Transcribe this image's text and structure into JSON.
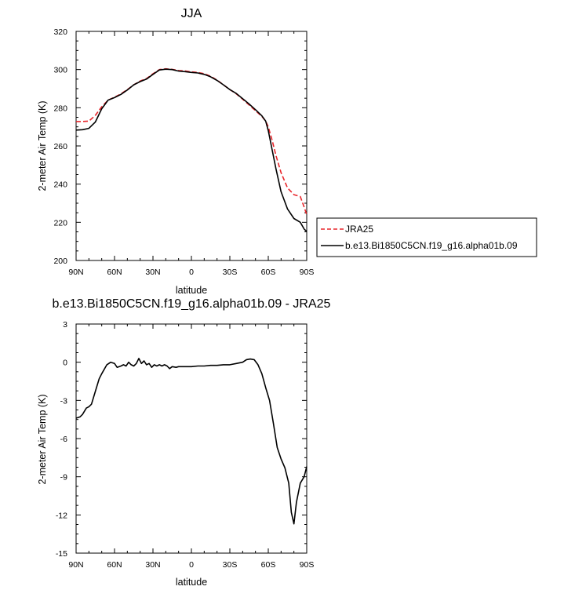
{
  "chart_data": [
    {
      "type": "line",
      "title": "JJA",
      "xlabel": "latitude",
      "ylabel": "2-meter Air Temp (K)",
      "xlim": [
        90,
        -90
      ],
      "ylim": [
        200,
        320
      ],
      "x_tick_labels": [
        "90N",
        "60N",
        "30N",
        "0",
        "30S",
        "60S",
        "90S"
      ],
      "y_tick_labels": [
        "200",
        "220",
        "240",
        "260",
        "280",
        "300",
        "320"
      ],
      "legend": {
        "placement": "right",
        "entries": [
          "JRA25",
          "b.e13.Bi1850C5CN.f19_g16.alpha01b.09"
        ]
      },
      "series": [
        {
          "name": "JRA25",
          "color": "#e8262b",
          "dash": "dashed",
          "points": [
            [
              90,
              272.8
            ],
            [
              85,
              272.8
            ],
            [
              80,
              273
            ],
            [
              75,
              276
            ],
            [
              70,
              280.5
            ],
            [
              65,
              284
            ],
            [
              60,
              285.5
            ],
            [
              55,
              287.3
            ],
            [
              50,
              289.5
            ],
            [
              45,
              292
            ],
            [
              40,
              294
            ],
            [
              35,
              295.3
            ],
            [
              30,
              297.8
            ],
            [
              25,
              300
            ],
            [
              20,
              300.4
            ],
            [
              15,
              300.1
            ],
            [
              10,
              299.5
            ],
            [
              5,
              299.3
            ],
            [
              0,
              298.8
            ],
            [
              -5,
              298.5
            ],
            [
              -10,
              297.8
            ],
            [
              -15,
              296.5
            ],
            [
              -20,
              294.5
            ],
            [
              -25,
              292
            ],
            [
              -30,
              289.5
            ],
            [
              -35,
              287.3
            ],
            [
              -40,
              284.5
            ],
            [
              -45,
              281.5
            ],
            [
              -50,
              278.5
            ],
            [
              -55,
              275.5
            ],
            [
              -58,
              273
            ],
            [
              -60,
              270
            ],
            [
              -63,
              263
            ],
            [
              -66,
              255
            ],
            [
              -70,
              246
            ],
            [
              -75,
              238
            ],
            [
              -80,
              234.5
            ],
            [
              -85,
              233.5
            ],
            [
              -88,
              228
            ],
            [
              -90,
              224
            ]
          ]
        },
        {
          "name": "b.e13.Bi1850C5CN.f19_g16.alpha01b.09",
          "color": "#000000",
          "dash": "solid",
          "points": [
            [
              90,
              268.3
            ],
            [
              85,
              268.5
            ],
            [
              80,
              269.2
            ],
            [
              75,
              272.5
            ],
            [
              70,
              279.5
            ],
            [
              65,
              284
            ],
            [
              60,
              285.3
            ],
            [
              55,
              287
            ],
            [
              50,
              289.3
            ],
            [
              45,
              292
            ],
            [
              40,
              293.7
            ],
            [
              35,
              295
            ],
            [
              30,
              297.5
            ],
            [
              25,
              299.8
            ],
            [
              20,
              300.2
            ],
            [
              15,
              300
            ],
            [
              10,
              299.2
            ],
            [
              5,
              298.9
            ],
            [
              0,
              298.5
            ],
            [
              -5,
              298.2
            ],
            [
              -10,
              297.5
            ],
            [
              -15,
              296.2
            ],
            [
              -20,
              294.3
            ],
            [
              -25,
              292
            ],
            [
              -30,
              289.5
            ],
            [
              -35,
              287.5
            ],
            [
              -40,
              284.8
            ],
            [
              -45,
              282
            ],
            [
              -50,
              279
            ],
            [
              -55,
              275.8
            ],
            [
              -58,
              273
            ],
            [
              -60,
              268
            ],
            [
              -63,
              258
            ],
            [
              -66,
              248
            ],
            [
              -70,
              236
            ],
            [
              -75,
              227
            ],
            [
              -80,
              222
            ],
            [
              -85,
              220
            ],
            [
              -88,
              216.5
            ],
            [
              -90,
              215.2
            ]
          ]
        }
      ]
    },
    {
      "type": "line",
      "title": "b.e13.Bi1850C5CN.f19_g16.alpha01b.09 - JRA25",
      "xlabel": "latitude",
      "ylabel": "2-meter Air Temp (K)",
      "xlim": [
        90,
        -90
      ],
      "ylim": [
        -15,
        3
      ],
      "x_tick_labels": [
        "90N",
        "60N",
        "30N",
        "0",
        "30S",
        "60S",
        "90S"
      ],
      "y_tick_labels": [
        "-15",
        "-12",
        "-9",
        "-6",
        "-3",
        "0",
        "3"
      ],
      "series": [
        {
          "color": "#000000",
          "dash": "solid",
          "points": [
            [
              90,
              -4.4
            ],
            [
              87,
              -4.3
            ],
            [
              85,
              -4.1
            ],
            [
              82,
              -3.6
            ],
            [
              80,
              -3.5
            ],
            [
              78,
              -3.3
            ],
            [
              75,
              -2.3
            ],
            [
              72,
              -1.3
            ],
            [
              70,
              -0.9
            ],
            [
              66,
              -0.2
            ],
            [
              63,
              0.0
            ],
            [
              60,
              -0.1
            ],
            [
              58,
              -0.4
            ],
            [
              55,
              -0.3
            ],
            [
              53,
              -0.2
            ],
            [
              51,
              -0.3
            ],
            [
              49,
              0.0
            ],
            [
              47,
              -0.2
            ],
            [
              45,
              -0.3
            ],
            [
              43,
              -0.1
            ],
            [
              41,
              0.3
            ],
            [
              39,
              -0.1
            ],
            [
              37,
              0.1
            ],
            [
              35,
              -0.2
            ],
            [
              33,
              -0.1
            ],
            [
              31,
              -0.4
            ],
            [
              29,
              -0.2
            ],
            [
              27,
              -0.3
            ],
            [
              25,
              -0.2
            ],
            [
              23,
              -0.3
            ],
            [
              21,
              -0.2
            ],
            [
              19,
              -0.3
            ],
            [
              17,
              -0.5
            ],
            [
              15,
              -0.35
            ],
            [
              12,
              -0.4
            ],
            [
              10,
              -0.35
            ],
            [
              5,
              -0.35
            ],
            [
              0,
              -0.35
            ],
            [
              -5,
              -0.3
            ],
            [
              -10,
              -0.3
            ],
            [
              -15,
              -0.25
            ],
            [
              -20,
              -0.25
            ],
            [
              -25,
              -0.2
            ],
            [
              -30,
              -0.2
            ],
            [
              -35,
              -0.1
            ],
            [
              -40,
              0.0
            ],
            [
              -43,
              0.2
            ],
            [
              -46,
              0.25
            ],
            [
              -49,
              0.2
            ],
            [
              -52,
              -0.2
            ],
            [
              -55,
              -0.9
            ],
            [
              -58,
              -2.0
            ],
            [
              -61,
              -3.0
            ],
            [
              -64,
              -4.8
            ],
            [
              -67,
              -6.7
            ],
            [
              -70,
              -7.6
            ],
            [
              -73,
              -8.3
            ],
            [
              -76,
              -9.5
            ],
            [
              -78,
              -11.8
            ],
            [
              -80,
              -12.7
            ],
            [
              -82,
              -11.0
            ],
            [
              -85,
              -9.5
            ],
            [
              -88,
              -9.0
            ],
            [
              -90,
              -8.2
            ]
          ]
        }
      ]
    }
  ]
}
